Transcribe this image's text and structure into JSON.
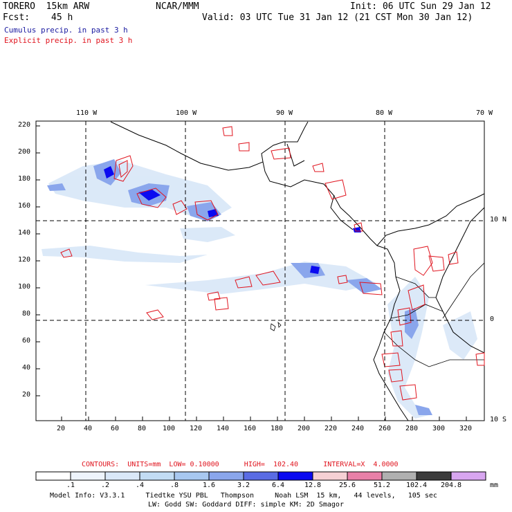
{
  "header": {
    "model": "TORERO  15km ARW",
    "fcst_label": "Fcst:",
    "fcst_value": "45 h",
    "org": "NCAR/MMM",
    "init": "Init: 06 UTC Sun 29 Jan 12",
    "valid": "Valid: 03 UTC Tue 31 Jan 12 (21 CST Mon 30 Jan 12)",
    "line1": "Cumulus precip. in past 3 h",
    "line2": "Explicit precip. in past 3 h"
  },
  "map": {
    "top_ticks": [
      "110 W",
      "100 W",
      "90 W",
      "80 W",
      "70 W"
    ],
    "right_ticks": [
      "10 N",
      "0",
      "10 S"
    ],
    "y_ticks": [
      "220",
      "200",
      "180",
      "160",
      "140",
      "120",
      "100",
      "80",
      "60",
      "40",
      "20"
    ],
    "x_ticks": [
      "20",
      "40",
      "60",
      "80",
      "100",
      "120",
      "140",
      "160",
      "180",
      "200",
      "220",
      "240",
      "260",
      "280",
      "300",
      "320"
    ]
  },
  "legend": {
    "contours": "CONTOURS:  UNITS=mm  LOW= 0.10000      HIGH=  102.40      INTERVAL=X  4.0000",
    "labels": [
      ".1",
      ".2",
      ".4",
      ".8",
      "1.6",
      "3.2",
      "6.4",
      "12.8",
      "25.6",
      "51.2",
      "102.4",
      "204.8"
    ],
    "unit": "mm",
    "colors": [
      "#ffffff",
      "#eef4fc",
      "#dae8f8",
      "#c2dcf4",
      "#a8c8f0",
      "#8aa6ec",
      "#5a6ce4",
      "#0a0af0",
      "#f6d0d4",
      "#e880a8",
      "#b0b0b0",
      "#3c3c3c",
      "#d8a6f0"
    ]
  },
  "footer": {
    "line1": "Model Info: V3.3.1     Tiedtke YSU PBL   Thompson     Noah LSM  15 km,   44 levels,   105 sec",
    "line2": "LW: Godd SW: Goddard DIFF: simple KM: 2D Smagor"
  }
}
